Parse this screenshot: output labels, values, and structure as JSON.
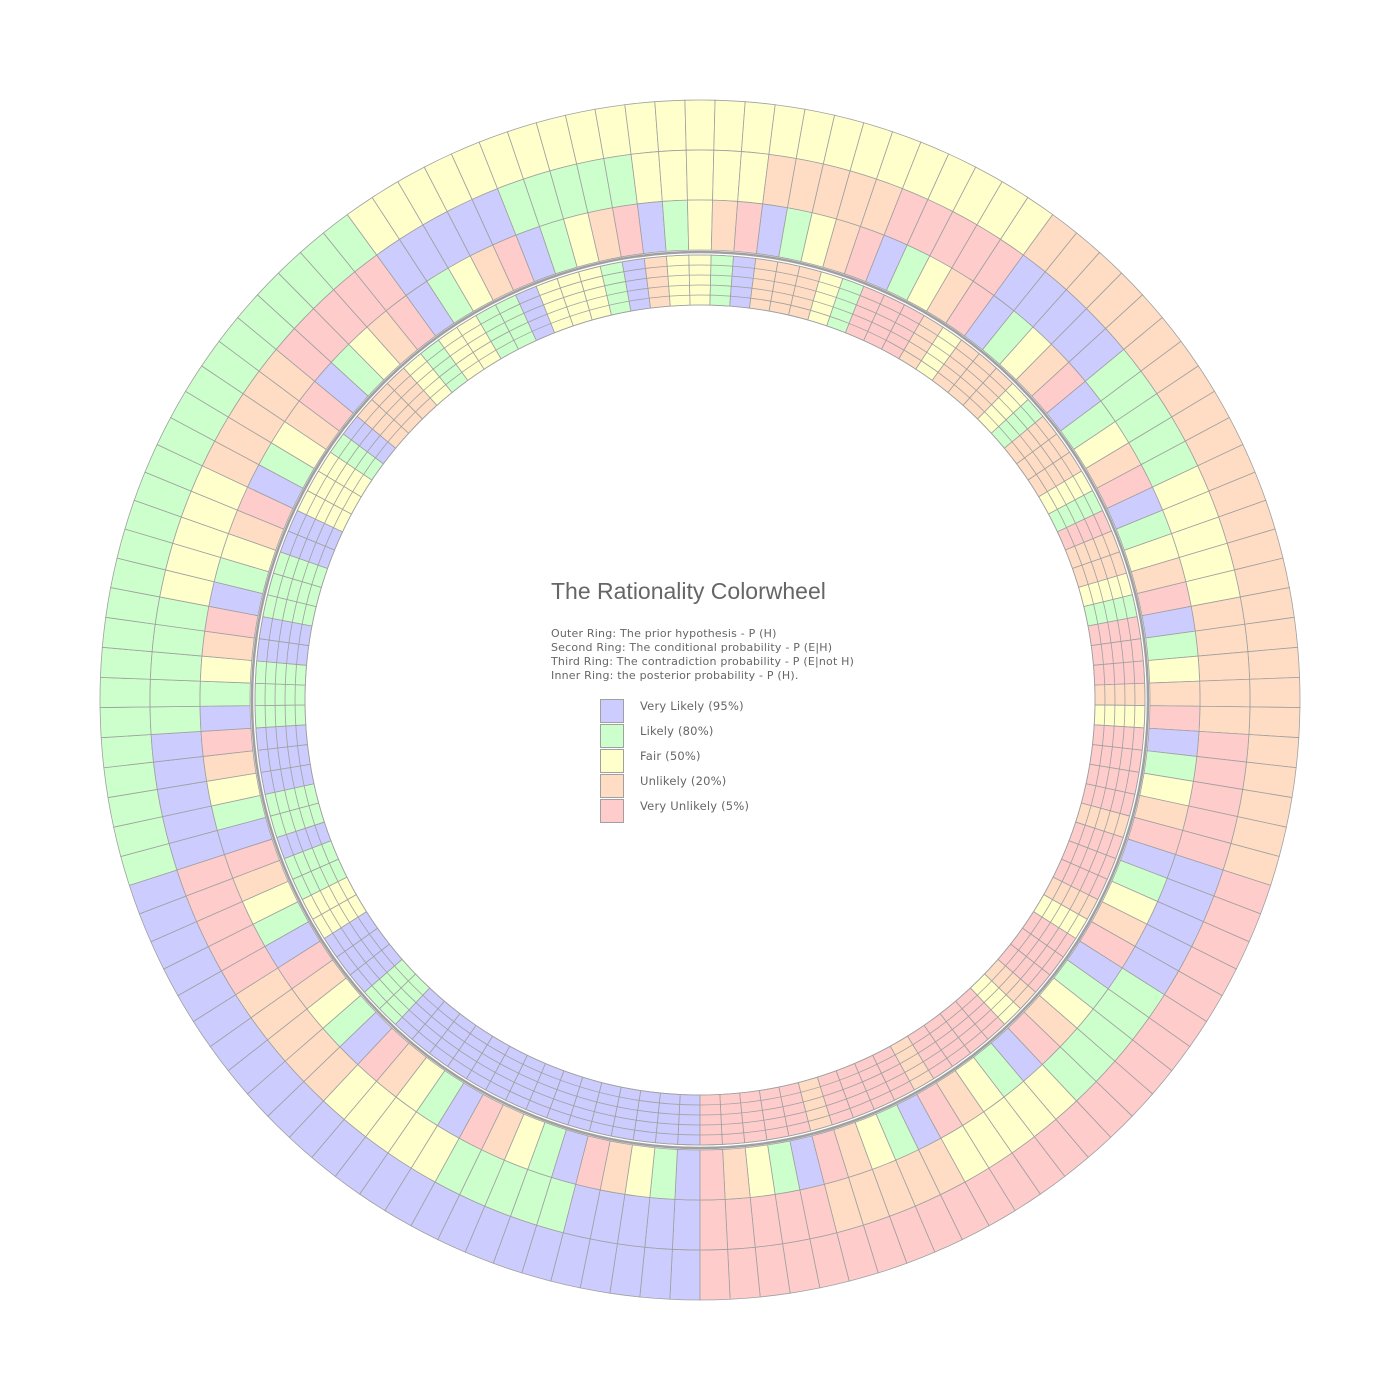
{
  "title": "The Rationality Colorwheel",
  "description": [
    "Outer Ring: The prior hypothesis - P (H)",
    "Second Ring: The conditional probability - P (E|H)",
    "Third Ring: The contradiction probability - P (E|not H)",
    "Inner Ring: the posterior probability - P (H)."
  ],
  "legend": [
    {
      "label": "Very Likely (95%)",
      "color": "#ccccff"
    },
    {
      "label": "Likely (80%)",
      "color": "#ccffcc"
    },
    {
      "label": "Fair (50%)",
      "color": "#ffffcc"
    },
    {
      "label": "Unlikely (20%)",
      "color": "#ffddc4"
    },
    {
      "label": "Very Unlikely (5%)",
      "color": "#ffcccc"
    }
  ],
  "levels": [
    0.95,
    0.8,
    0.5,
    0.2,
    0.05
  ],
  "segments_per_ring": 125,
  "outline_color": "#a0a0a0"
}
